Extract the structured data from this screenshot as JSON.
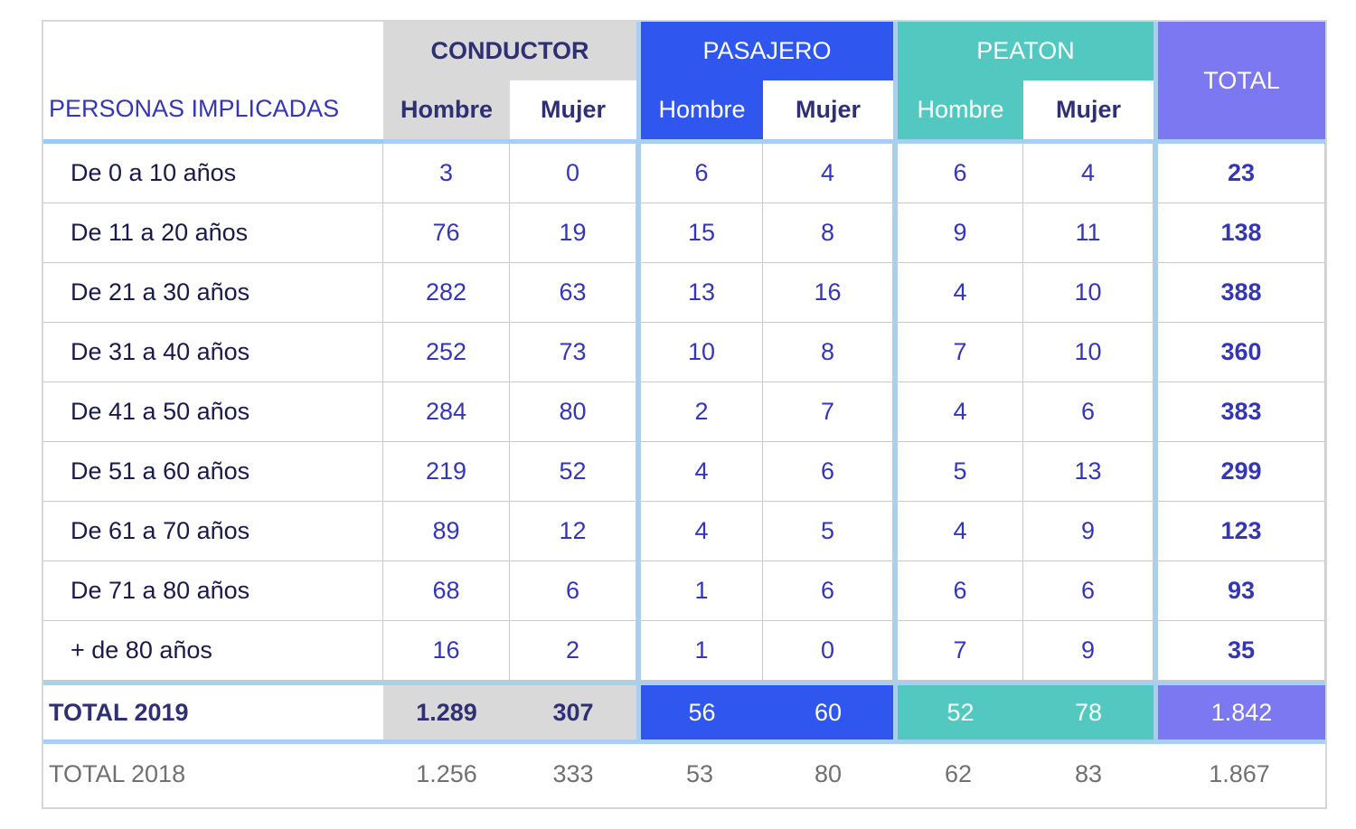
{
  "header": {
    "corner_label": "PERSONAS IMPLICADAS",
    "groups": [
      "CONDUCTOR",
      "PASAJERO",
      "PEATON"
    ],
    "total_label": "TOTAL",
    "sub": [
      "Hombre",
      "Mujer",
      "Hombre",
      "Mujer",
      "Hombre",
      "Mujer"
    ]
  },
  "rows": [
    {
      "label": "De 0  a 10 años",
      "values": [
        "3",
        "0",
        "6",
        "4",
        "6",
        "4",
        "23"
      ]
    },
    {
      "label": "De 11 a 20 años",
      "values": [
        "76",
        "19",
        "15",
        "8",
        "9",
        "11",
        "138"
      ]
    },
    {
      "label": "De 21 a 30 años",
      "values": [
        "282",
        "63",
        "13",
        "16",
        "4",
        "10",
        "388"
      ]
    },
    {
      "label": "De 31 a 40 años",
      "values": [
        "252",
        "73",
        "10",
        "8",
        "7",
        "10",
        "360"
      ]
    },
    {
      "label": "De 41 a 50 años",
      "values": [
        "284",
        "80",
        "2",
        "7",
        "4",
        "6",
        "383"
      ]
    },
    {
      "label": "De 51 a 60 años",
      "values": [
        "219",
        "52",
        "4",
        "6",
        "5",
        "13",
        "299"
      ]
    },
    {
      "label": "De 61 a 70 años",
      "values": [
        "89",
        "12",
        "4",
        "5",
        "4",
        "9",
        "123"
      ]
    },
    {
      "label": "De 71 a 80 años",
      "values": [
        "68",
        "6",
        "1",
        "6",
        "6",
        "6",
        "93"
      ]
    },
    {
      "label": "+ de 80 años",
      "values": [
        "16",
        "2",
        "1",
        "0",
        "7",
        "9",
        "35"
      ]
    }
  ],
  "total_2019": {
    "label": "TOTAL 2019",
    "values": [
      "1.289",
      "307",
      "56",
      "60",
      "52",
      "78",
      "1.842"
    ]
  },
  "total_2018": {
    "label": "TOTAL 2018",
    "values": [
      "1.256",
      "333",
      "53",
      "80",
      "62",
      "83",
      "1.867"
    ]
  },
  "colors": {
    "conductor": "#d9d9d9",
    "pasajero": "#2f57ef",
    "peaton": "#52c8c0",
    "total": "#7b78f2",
    "separator": "#a9cff0",
    "text_blue": "#3535b8"
  }
}
